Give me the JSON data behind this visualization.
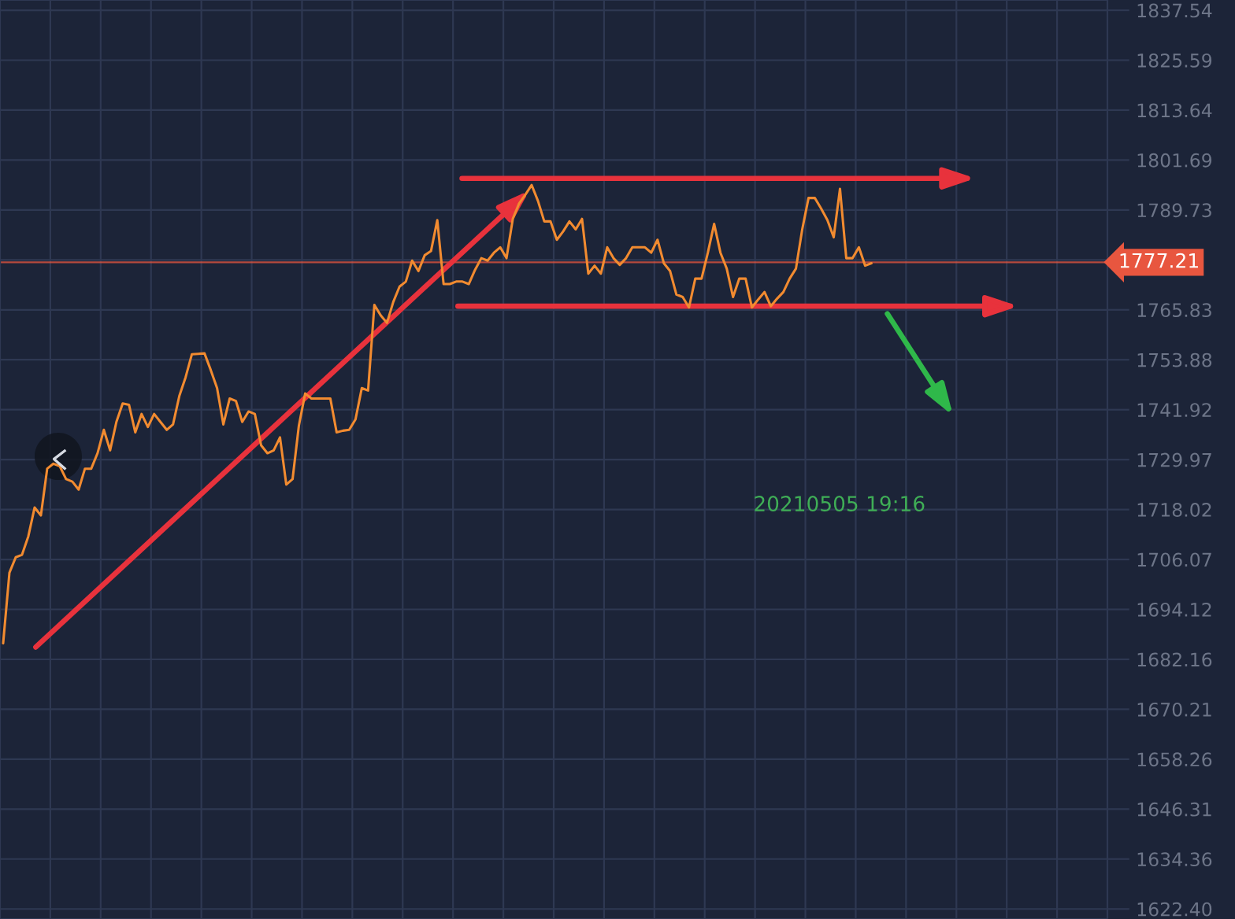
{
  "chart_data": {
    "type": "line",
    "categories": [
      null,
      null,
      null,
      null,
      null,
      null,
      null,
      null,
      null,
      null,
      null,
      null,
      null,
      null,
      null,
      null,
      null,
      null,
      null,
      null,
      null,
      null,
      null,
      null,
      null,
      null,
      null,
      null,
      null,
      null,
      null,
      null,
      null,
      null,
      null,
      null,
      null,
      null,
      null,
      null,
      null,
      null,
      null,
      null,
      null,
      null,
      null,
      null,
      null,
      null,
      null,
      null,
      null,
      null,
      null,
      null,
      null,
      null,
      null,
      null,
      null,
      null,
      null,
      null,
      null,
      null,
      null,
      null,
      null,
      null,
      null,
      null,
      null,
      null,
      null,
      null,
      null,
      null,
      null,
      null,
      null,
      null,
      null,
      null,
      null,
      null,
      null,
      null,
      null,
      null,
      null,
      null,
      null,
      null,
      null,
      null,
      null,
      null,
      null,
      null,
      null,
      null,
      null,
      null,
      null,
      null,
      null,
      null,
      null,
      null,
      null,
      null,
      null,
      null,
      null,
      null,
      null,
      null,
      null,
      null,
      null,
      null,
      null,
      null,
      null,
      null,
      null,
      null,
      null,
      null,
      null,
      null,
      null,
      null,
      null,
      null,
      null,
      null,
      null,
      null,
      null,
      null,
      null,
      null,
      null,
      null,
      null,
      null,
      null,
      null,
      null,
      null,
      null,
      null,
      null,
      null,
      null,
      null,
      null,
      null,
      null,
      null,
      null,
      null,
      null,
      null,
      null,
      null,
      null,
      null,
      null,
      null,
      null,
      null,
      null,
      null
    ],
    "ylim": [
      1620,
      1840
    ],
    "yticks": [
      1837.54,
      1825.59,
      1813.64,
      1801.69,
      1789.73,
      {
        "value": 1777.78,
        "label": null
      },
      1765.83,
      1753.88,
      1741.92,
      1729.97,
      1718.02,
      1706.07,
      1694.12,
      1682.16,
      1670.21,
      1658.26,
      1646.31,
      1634.36,
      {
        "value": 1622.4,
        "label": "1622.40"
      }
    ],
    "tick_labels": "y",
    "grid": true,
    "series": [
      {
        "color": "#f28b30",
        "values": [
          1686.0,
          1702.9,
          1706.6,
          1707.2,
          1711.6,
          1718.5,
          1716.6,
          1727.8,
          1729.0,
          1728.4,
          1725.3,
          1724.7,
          1722.8,
          1727.8,
          1727.8,
          1731.5,
          1737.1,
          1732.2,
          1739.0,
          1743.4,
          1743.1,
          1736.5,
          1740.9,
          1737.8,
          1740.9,
          1739.0,
          1737.1,
          1738.4,
          1745.2,
          1749.7,
          1755.2,
          1755.3,
          1755.4,
          1751.4,
          1747.1,
          1738.4,
          1744.6,
          1744.0,
          1739.0,
          1741.5,
          1740.9,
          1733.4,
          1731.5,
          1732.2,
          1735.3,
          1724.0,
          1725.3,
          1738.1,
          1745.8,
          1744.6,
          1744.6,
          1744.6,
          1744.6,
          1736.5,
          1736.9,
          1737.1,
          1739.6,
          1747.1,
          1746.5,
          1767.0,
          1764.5,
          1762.7,
          1767.7,
          1771.4,
          1772.6,
          1777.6,
          1775.1,
          1778.9,
          1779.9,
          1787.3,
          1772.0,
          1772.0,
          1772.6,
          1772.6,
          1772.0,
          1775.4,
          1778.2,
          1777.6,
          1779.5,
          1780.8,
          1778.2,
          1787.6,
          1791.3,
          1793.4,
          1795.7,
          1791.9,
          1787.0,
          1787.0,
          1782.6,
          1784.6,
          1787.0,
          1785.1,
          1787.6,
          1774.5,
          1776.4,
          1774.5,
          1780.8,
          1778.2,
          1776.6,
          1778.2,
          1780.8,
          1780.8,
          1780.8,
          1779.5,
          1782.6,
          1777.0,
          1775.1,
          1769.5,
          1768.9,
          1766.4,
          1773.3,
          1773.3,
          1779.5,
          1786.4,
          1779.5,
          1775.7,
          1768.9,
          1773.3,
          1773.3,
          1766.4,
          1768.3,
          1770.1,
          1766.7,
          1768.5,
          1770.1,
          1773.3,
          1775.7,
          1785.1,
          1792.6,
          1792.6,
          1790.1,
          1787.3,
          1783.2,
          1794.8,
          1778.2,
          1778.2,
          1780.8,
          1776.4,
          1777.0,
          null,
          null,
          null,
          null,
          null,
          null,
          null,
          null,
          null,
          null,
          null,
          null,
          null,
          null,
          null,
          null,
          null,
          null,
          null,
          null,
          null,
          null,
          null,
          null,
          null,
          null,
          null,
          null,
          null,
          null,
          null,
          null,
          null,
          null,
          null,
          null,
          null
        ]
      }
    ],
    "ref_lines": [
      {
        "axis": "y",
        "value": 1777.21,
        "label": "1777.21",
        "color": "#e8563f"
      }
    ],
    "annotations": [
      "20210505 19:16"
    ]
  }
}
